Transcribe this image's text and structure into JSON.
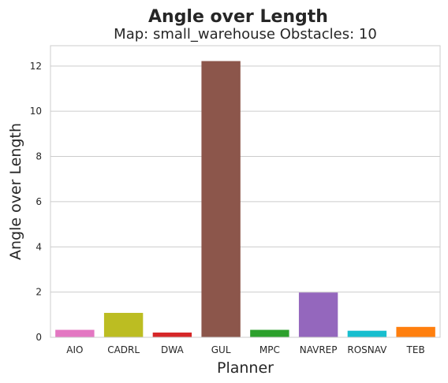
{
  "chart_data": {
    "type": "bar",
    "title": "Angle over Length",
    "subtitle": "Map: small_warehouse Obstacles: 10",
    "xlabel": "Planner",
    "ylabel": "Angle over Length",
    "categories": [
      "AIO",
      "CADRL",
      "DWA",
      "GUL",
      "MPC",
      "NAVREP",
      "ROSNAV",
      "TEB"
    ],
    "values": [
      0.33,
      1.08,
      0.21,
      12.22,
      0.33,
      1.98,
      0.29,
      0.46
    ],
    "colors": [
      "#e377c2",
      "#bcbd22",
      "#d62728",
      "#8c564b",
      "#2ca02c",
      "#9467bd",
      "#17becf",
      "#ff7f0e"
    ],
    "yticks": [
      0,
      2,
      4,
      6,
      8,
      10,
      12
    ],
    "ylim": [
      0,
      12.9
    ],
    "grid": "horizontal",
    "legend": "none"
  }
}
